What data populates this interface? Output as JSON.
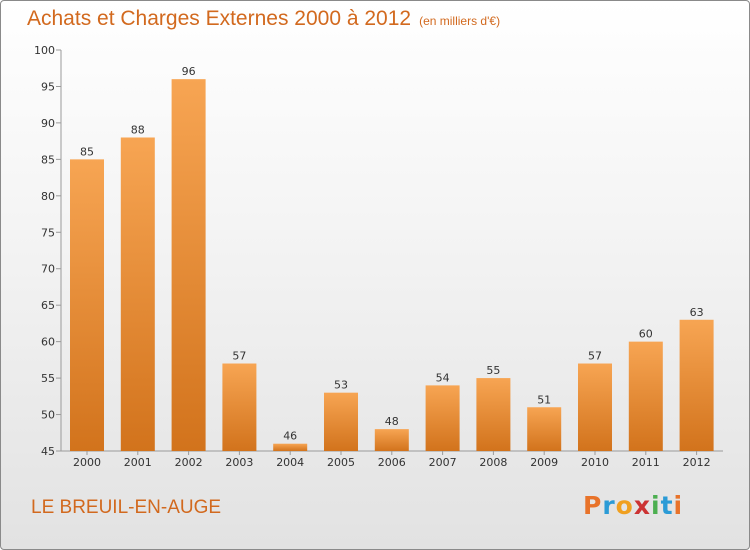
{
  "chart_data": {
    "type": "bar",
    "title": "Achats et Charges Externes 2000 à 2012",
    "subtitle": "(en milliers d'€)",
    "categories": [
      "2000",
      "2001",
      "2002",
      "2003",
      "2004",
      "2005",
      "2006",
      "2007",
      "2008",
      "2009",
      "2010",
      "2011",
      "2012"
    ],
    "values": [
      85,
      88,
      96,
      57,
      46,
      53,
      48,
      54,
      55,
      51,
      57,
      60,
      63
    ],
    "ylim": [
      45,
      100
    ],
    "yticks": [
      45,
      50,
      55,
      60,
      65,
      70,
      75,
      80,
      85,
      90,
      95,
      100
    ],
    "grid": false,
    "colors": {
      "bar_top": "#f7a553",
      "bar_bottom": "#d2731c",
      "title": "#d2691e"
    }
  },
  "commune": "LE BREUIL-EN-AUGE",
  "brand": {
    "letters": [
      "P",
      "r",
      "o",
      "x",
      "i",
      "t",
      "i"
    ],
    "colors": [
      "#e8732a",
      "#2b9bd6",
      "#f0a020",
      "#cc3333",
      "#4caf50",
      "#2b9bd6",
      "#e8732a"
    ]
  }
}
